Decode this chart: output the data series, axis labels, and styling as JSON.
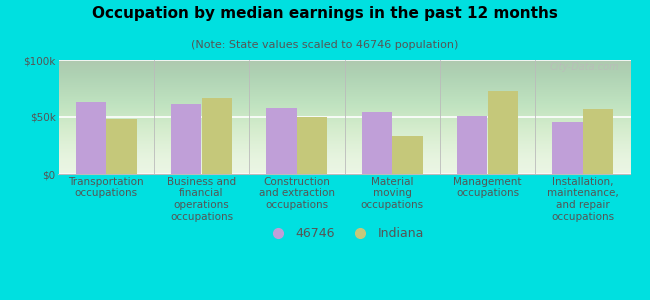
{
  "title": "Occupation by median earnings in the past 12 months",
  "subtitle": "(Note: State values scaled to 46746 population)",
  "categories": [
    "Transportation\noccupations",
    "Business and\nfinancial\noperations\noccupations",
    "Construction\nand extraction\noccupations",
    "Material\nmoving\noccupations",
    "Management\noccupations",
    "Installation,\nmaintenance,\nand repair\noccupations"
  ],
  "values_city": [
    63000,
    61000,
    58000,
    54000,
    51000,
    46000
  ],
  "values_state": [
    48000,
    67000,
    50000,
    33000,
    73000,
    57000
  ],
  "color_city": "#c09fd8",
  "color_state": "#c5c87a",
  "background_chart_top": "#f0f8e8",
  "background_chart_bottom": "#e0f0d0",
  "background_fig": "#00e0e0",
  "ylim": [
    0,
    100000
  ],
  "yticks": [
    0,
    50000,
    100000
  ],
  "ytick_labels": [
    "$0",
    "$50k",
    "$100k"
  ],
  "legend_city": "46746",
  "legend_state": "Indiana",
  "watermark": "City-Data.com",
  "title_fontsize": 11,
  "subtitle_fontsize": 8,
  "tick_label_fontsize": 7.5,
  "legend_fontsize": 9,
  "bar_width": 0.32
}
